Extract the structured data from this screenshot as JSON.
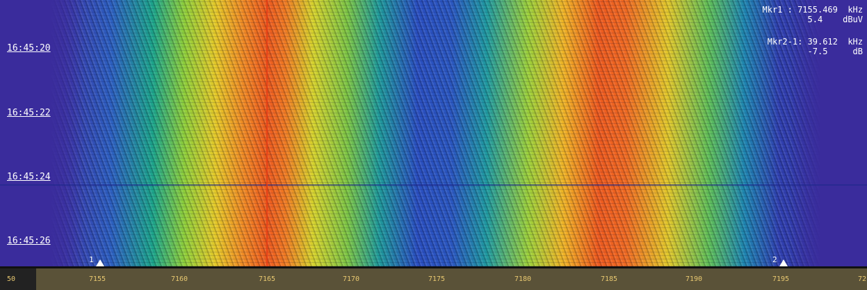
{
  "time_labels": [
    "16:45:20",
    "16:45:22",
    "16:45:24",
    "16:45:26"
  ],
  "readout": [
    {
      "line1": "Mkr1 : 7155.469  kHz",
      "line2": "5.4    dBuV"
    },
    {
      "line1": "Mkr2-1: 39.612  kHz",
      "line2": "-7.5     dB"
    }
  ],
  "marker_flags": [
    "1",
    "2"
  ],
  "frequency_axis": [
    "50",
    "7155",
    "7160",
    "7165",
    "7170",
    "7175",
    "7180",
    "7185",
    "7190",
    "7195",
    "72"
  ]
}
